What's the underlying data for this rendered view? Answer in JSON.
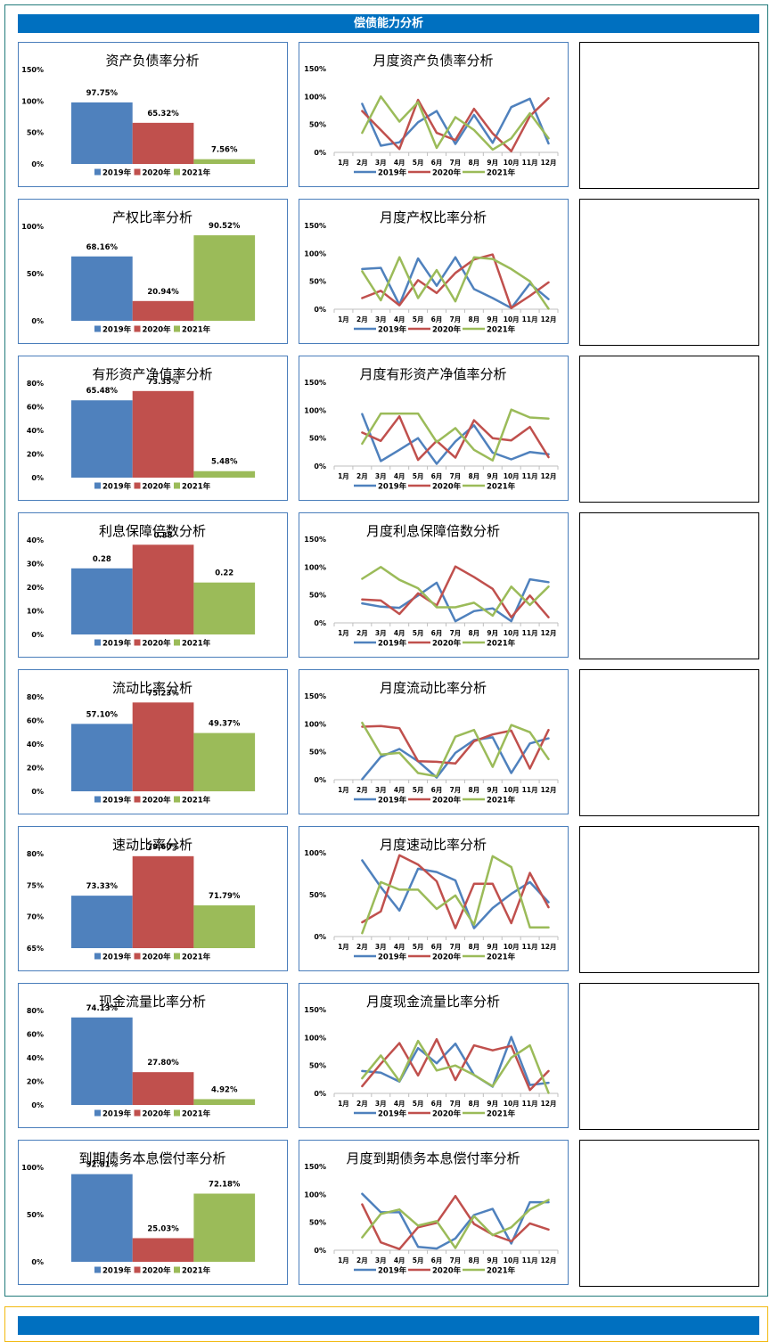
{
  "section": {
    "title": "偿债能力分析"
  },
  "colors": {
    "header_bg": "#0070c0",
    "panel_border": "#237b7b",
    "card_border": "#4a7ebb",
    "next_panel_border": "#f2b90f",
    "series": [
      "#4f81bd",
      "#c0504d",
      "#9bbb59"
    ]
  },
  "chart_data": [
    {
      "type": "bar",
      "title": "资产负债率分析",
      "categories": [
        "2019年",
        "2020年",
        "2021年"
      ],
      "values": [
        97.75,
        65.32,
        7.56
      ],
      "data_labels": [
        "97.75%",
        "65.32%",
        "7.56%"
      ],
      "yticks": [
        "0%",
        "50%",
        "100%",
        "150%"
      ],
      "ylim": [
        0,
        150
      ],
      "legend": [
        "2019年",
        "2020年",
        "2021年"
      ],
      "legend_position": "bottom",
      "grid": false
    },
    {
      "type": "line",
      "title": "月度资产负债率分析",
      "categories": [
        "1月",
        "2月",
        "3月",
        "4月",
        "5月",
        "6月",
        "7月",
        "8月",
        "9月",
        "10月",
        "11月",
        "12月"
      ],
      "series": [
        {
          "name": "2019年",
          "values": [
            null,
            87,
            12,
            18,
            54,
            74,
            15,
            67,
            17,
            81,
            96,
            16
          ]
        },
        {
          "name": "2020年",
          "values": [
            null,
            74,
            40,
            6,
            94,
            35,
            22,
            78,
            34,
            2,
            65,
            97
          ]
        },
        {
          "name": "2021年",
          "values": [
            null,
            35,
            100,
            55,
            90,
            8,
            63,
            40,
            5,
            25,
            70,
            25
          ]
        }
      ],
      "yticks": [
        "0%",
        "50%",
        "100%",
        "150%"
      ],
      "ylim": [
        0,
        150
      ],
      "legend_position": "bottom",
      "grid": false
    },
    {
      "type": "bar",
      "title": "产权比率分析",
      "categories": [
        "2019年",
        "2020年",
        "2021年"
      ],
      "values": [
        68.16,
        20.94,
        90.52
      ],
      "data_labels": [
        "68.16%",
        "20.94%",
        "90.52%"
      ],
      "yticks": [
        "0%",
        "50%",
        "100%"
      ],
      "ylim": [
        0,
        100
      ],
      "legend": [
        "2019年",
        "2020年",
        "2021年"
      ],
      "legend_position": "bottom",
      "grid": false
    },
    {
      "type": "line",
      "title": "月度产权比率分析",
      "categories": [
        "1月",
        "2月",
        "3月",
        "4月",
        "5月",
        "6月",
        "7月",
        "8月",
        "9月",
        "10月",
        "11月",
        "12月"
      ],
      "series": [
        {
          "name": "2019年",
          "values": [
            null,
            72,
            74,
            8,
            91,
            42,
            93,
            36,
            20,
            2,
            46,
            18
          ]
        },
        {
          "name": "2020年",
          "values": [
            null,
            20,
            33,
            7,
            52,
            29,
            65,
            89,
            98,
            2,
            24,
            48
          ]
        },
        {
          "name": "2021年",
          "values": [
            null,
            68,
            16,
            93,
            20,
            70,
            14,
            93,
            90,
            72,
            50,
            1
          ]
        }
      ],
      "yticks": [
        "0%",
        "50%",
        "100%",
        "150%"
      ],
      "ylim": [
        0,
        150
      ],
      "legend_position": "bottom",
      "grid": false
    },
    {
      "type": "bar",
      "title": "有形资产净值率分析",
      "categories": [
        "2019年",
        "2020年",
        "2021年"
      ],
      "values": [
        65.48,
        73.35,
        5.48
      ],
      "data_labels": [
        "65.48%",
        "73.35%",
        "5.48%"
      ],
      "yticks": [
        "0%",
        "20%",
        "40%",
        "60%",
        "80%"
      ],
      "ylim": [
        0,
        80
      ],
      "legend": [
        "2019年",
        "2020年",
        "2021年"
      ],
      "legend_position": "bottom",
      "grid": false
    },
    {
      "type": "line",
      "title": "月度有形资产净值率分析",
      "categories": [
        "1月",
        "2月",
        "3月",
        "4月",
        "5月",
        "6月",
        "7月",
        "8月",
        "9月",
        "10月",
        "11月",
        "12月"
      ],
      "series": [
        {
          "name": "2019年",
          "values": [
            null,
            93,
            9,
            29,
            50,
            4,
            44,
            73,
            24,
            12,
            25,
            21
          ]
        },
        {
          "name": "2020年",
          "values": [
            null,
            60,
            45,
            89,
            11,
            45,
            15,
            82,
            50,
            46,
            70,
            16
          ]
        },
        {
          "name": "2021年",
          "values": [
            null,
            40,
            94,
            94,
            94,
            43,
            68,
            29,
            10,
            101,
            87,
            85
          ]
        }
      ],
      "yticks": [
        "0%",
        "50%",
        "100%",
        "150%"
      ],
      "ylim": [
        0,
        150
      ],
      "legend_position": "bottom",
      "grid": false
    },
    {
      "type": "bar",
      "title": "利息保障倍数分析",
      "categories": [
        "2019年",
        "2020年",
        "2021年"
      ],
      "values": [
        28,
        38,
        22
      ],
      "data_labels": [
        "0.28",
        "0.38",
        "0.22"
      ],
      "yticks": [
        "0%",
        "10%",
        "20%",
        "30%",
        "40%"
      ],
      "ylim": [
        0,
        40
      ],
      "legend": [
        "2019年",
        "2020年",
        "2021年"
      ],
      "legend_position": "bottom",
      "grid": false
    },
    {
      "type": "line",
      "title": "月度利息保障倍数分析",
      "categories": [
        "1月",
        "2月",
        "3月",
        "4月",
        "5月",
        "6月",
        "7月",
        "8月",
        "9月",
        "10月",
        "11月",
        "12月"
      ],
      "series": [
        {
          "name": "2019年",
          "values": [
            null,
            35,
            29,
            27,
            49,
            72,
            3,
            21,
            26,
            3,
            78,
            73
          ]
        },
        {
          "name": "2020年",
          "values": [
            null,
            42,
            40,
            16,
            53,
            31,
            101,
            82,
            61,
            10,
            49,
            10
          ]
        },
        {
          "name": "2021年",
          "values": [
            null,
            79,
            100,
            77,
            62,
            28,
            28,
            36,
            13,
            65,
            32,
            65
          ]
        }
      ],
      "yticks": [
        "0%",
        "50%",
        "100%",
        "150%"
      ],
      "ylim": [
        0,
        150
      ],
      "legend_position": "bottom",
      "grid": false
    },
    {
      "type": "bar",
      "title": "流动比率分析",
      "categories": [
        "2019年",
        "2020年",
        "2021年"
      ],
      "values": [
        57.1,
        75.23,
        49.37
      ],
      "data_labels": [
        "57.10%",
        "75.23%",
        "49.37%"
      ],
      "yticks": [
        "0%",
        "20%",
        "40%",
        "60%",
        "80%"
      ],
      "ylim": [
        0,
        80
      ],
      "legend": [
        "2019年",
        "2020年",
        "2021年"
      ],
      "legend_position": "bottom",
      "grid": false
    },
    {
      "type": "line",
      "title": "月度流动比率分析",
      "categories": [
        "1月",
        "2月",
        "3月",
        "4月",
        "5月",
        "6月",
        "7月",
        "8月",
        "9月",
        "10月",
        "11月",
        "12月"
      ],
      "series": [
        {
          "name": "2019年",
          "values": [
            null,
            1,
            41,
            55,
            33,
            4,
            48,
            71,
            76,
            12,
            65,
            74
          ]
        },
        {
          "name": "2020年",
          "values": [
            null,
            95,
            96,
            92,
            33,
            32,
            29,
            69,
            81,
            88,
            20,
            89
          ]
        },
        {
          "name": "2021年",
          "values": [
            null,
            102,
            45,
            48,
            12,
            6,
            77,
            89,
            23,
            98,
            85,
            37
          ]
        }
      ],
      "yticks": [
        "0%",
        "50%",
        "100%",
        "150%"
      ],
      "ylim": [
        0,
        150
      ],
      "legend_position": "bottom",
      "grid": false
    },
    {
      "type": "bar",
      "title": "速动比率分析",
      "categories": [
        "2019年",
        "2020年",
        "2021年"
      ],
      "values": [
        73.33,
        79.6,
        71.79
      ],
      "data_labels": [
        "73.33%",
        "79.60%",
        "71.79%"
      ],
      "yticks": [
        "65%",
        "70%",
        "75%",
        "80%"
      ],
      "ylim": [
        65,
        80
      ],
      "legend": [
        "2019年",
        "2020年",
        "2021年"
      ],
      "legend_position": "bottom",
      "grid": false
    },
    {
      "type": "line",
      "title": "月度速动比率分析",
      "categories": [
        "1月",
        "2月",
        "3月",
        "4月",
        "5月",
        "6月",
        "7月",
        "8月",
        "9月",
        "10月",
        "11月",
        "12月"
      ],
      "series": [
        {
          "name": "2019年",
          "values": [
            null,
            91,
            59,
            31,
            81,
            77,
            67,
            10,
            34,
            51,
            65,
            41
          ]
        },
        {
          "name": "2020年",
          "values": [
            null,
            17,
            30,
            97,
            86,
            66,
            10,
            63,
            63,
            16,
            76,
            35
          ]
        },
        {
          "name": "2021年",
          "values": [
            null,
            4,
            65,
            56,
            56,
            33,
            49,
            14,
            96,
            83,
            11,
            11
          ]
        }
      ],
      "yticks": [
        "0%",
        "50%",
        "100%"
      ],
      "ylim": [
        0,
        100
      ],
      "legend_position": "bottom",
      "grid": false
    },
    {
      "type": "bar",
      "title": "现金流量比率分析",
      "categories": [
        "2019年",
        "2020年",
        "2021年"
      ],
      "values": [
        74.13,
        27.8,
        4.92
      ],
      "data_labels": [
        "74.13%",
        "27.80%",
        "4.92%"
      ],
      "yticks": [
        "0%",
        "20%",
        "40%",
        "60%",
        "80%"
      ],
      "ylim": [
        0,
        80
      ],
      "legend": [
        "2019年",
        "2020年",
        "2021年"
      ],
      "legend_position": "bottom",
      "grid": false
    },
    {
      "type": "line",
      "title": "月度现金流量比率分析",
      "categories": [
        "1月",
        "2月",
        "3月",
        "4月",
        "5月",
        "6月",
        "7月",
        "8月",
        "9月",
        "10月",
        "11月",
        "12月"
      ],
      "series": [
        {
          "name": "2019年",
          "values": [
            null,
            40,
            37,
            21,
            81,
            54,
            89,
            33,
            12,
            101,
            15,
            19
          ]
        },
        {
          "name": "2020年",
          "values": [
            null,
            13,
            53,
            90,
            32,
            97,
            24,
            86,
            77,
            85,
            6,
            40
          ]
        },
        {
          "name": "2021年",
          "values": [
            null,
            27,
            68,
            22,
            94,
            41,
            50,
            33,
            13,
            64,
            86,
            1
          ]
        }
      ],
      "yticks": [
        "0%",
        "50%",
        "100%",
        "150%"
      ],
      "ylim": [
        0,
        150
      ],
      "legend_position": "bottom",
      "grid": false
    },
    {
      "type": "bar",
      "title": "到期债务本息偿付率分析",
      "categories": [
        "2019年",
        "2020年",
        "2021年"
      ],
      "values": [
        92.81,
        25.03,
        72.18
      ],
      "data_labels": [
        "92.81%",
        "25.03%",
        "72.18%"
      ],
      "yticks": [
        "0%",
        "50%",
        "100%"
      ],
      "ylim": [
        0,
        100
      ],
      "legend": [
        "2019年",
        "2020年",
        "2021年"
      ],
      "legend_position": "bottom",
      "grid": false
    },
    {
      "type": "line",
      "title": "月度到期债务本息偿付率分析",
      "categories": [
        "1月",
        "2月",
        "3月",
        "4月",
        "5月",
        "6月",
        "7月",
        "8月",
        "9月",
        "10月",
        "11月",
        "12月"
      ],
      "series": [
        {
          "name": "2019年",
          "values": [
            null,
            101,
            68,
            68,
            6,
            3,
            21,
            63,
            74,
            12,
            86,
            86
          ]
        },
        {
          "name": "2020年",
          "values": [
            null,
            82,
            14,
            2,
            41,
            49,
            97,
            47,
            28,
            16,
            48,
            37
          ]
        },
        {
          "name": "2021年",
          "values": [
            null,
            23,
            65,
            73,
            44,
            52,
            4,
            61,
            27,
            41,
            73,
            90
          ]
        }
      ],
      "yticks": [
        "0%",
        "50%",
        "100%",
        "150%"
      ],
      "ylim": [
        0,
        150
      ],
      "legend_position": "bottom",
      "grid": false
    }
  ]
}
